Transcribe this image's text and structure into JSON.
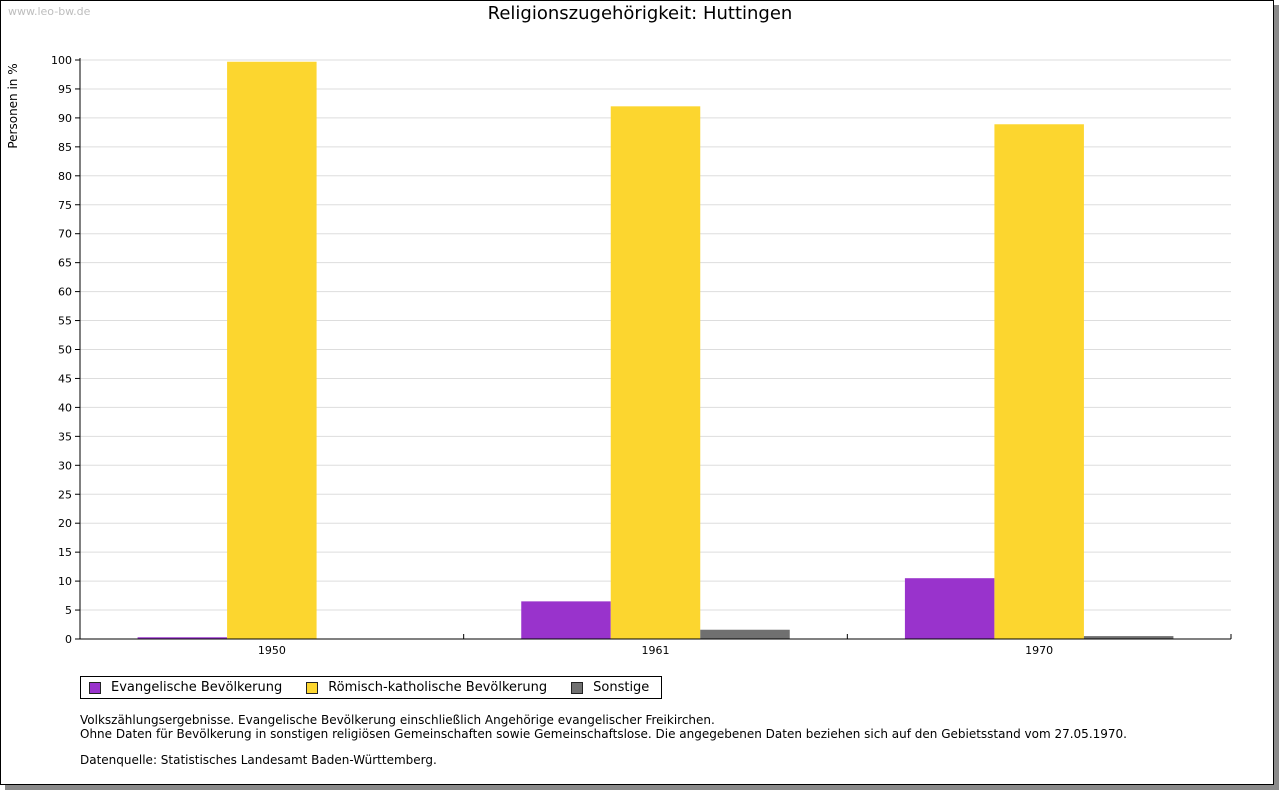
{
  "watermark": "www.leo-bw.de",
  "chart_data": {
    "type": "bar",
    "title": "Religionszugehörigkeit: Huttingen",
    "xlabel": "",
    "ylabel": "Personen in %",
    "ylim": [
      0,
      100
    ],
    "yticks": [
      "0",
      "5",
      "10",
      "15",
      "20",
      "25",
      "30",
      "35",
      "40",
      "45",
      "50",
      "55",
      "60",
      "65",
      "70",
      "75",
      "80",
      "85",
      "90",
      "95",
      "100"
    ],
    "categories": [
      "1950",
      "1961",
      "1970"
    ],
    "series": [
      {
        "name": "Evangelische Bevölkerung",
        "color": "#9933cc",
        "values": [
          0.3,
          6.5,
          10.5
        ]
      },
      {
        "name": "Römisch-katholische Bevölkerung",
        "color": "#fcd62f",
        "values": [
          99.7,
          92.0,
          88.9
        ]
      },
      {
        "name": "Sonstige",
        "color": "#707070",
        "values": [
          0.0,
          1.6,
          0.5
        ]
      }
    ],
    "grid": true,
    "legend_position": "bottom-left"
  },
  "notes": {
    "line1": "Volkszählungsergebnisse. Evangelische Bevölkerung einschließlich Angehörige evangelischer Freikirchen.",
    "line2": "Ohne Daten für Bevölkerung in sonstigen religiösen Gemeinschaften sowie Gemeinschaftslose. Die angegebenen Daten beziehen sich auf den Gebietsstand vom 27.05.1970.",
    "source": "Datenquelle: Statistisches Landesamt Baden-Württemberg."
  }
}
